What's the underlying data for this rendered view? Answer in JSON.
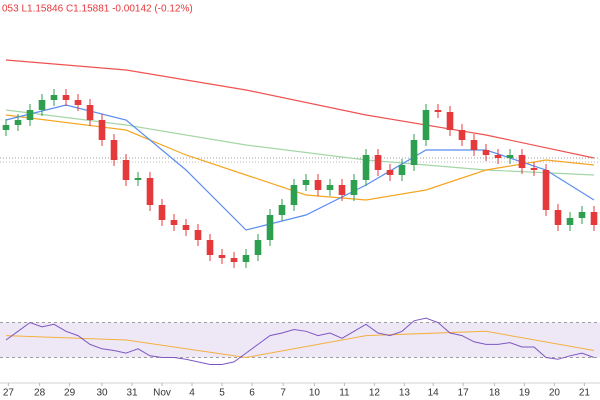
{
  "chart_data": {
    "type": "candlestick",
    "title": "053  L1.15846  C1.15881  -0.00142 (-0.12%)",
    "up_color": "#2e9e4f",
    "down_color": "#e5383b",
    "x": [
      0,
      1,
      2,
      3,
      4,
      5,
      6,
      7,
      8,
      9,
      10,
      11,
      12,
      13,
      14,
      15,
      16,
      17,
      18,
      19,
      20,
      21,
      22,
      23,
      24,
      25,
      26,
      27,
      28,
      29,
      30,
      31,
      32,
      33,
      34,
      35,
      36,
      37,
      38,
      39,
      40,
      41,
      42,
      43,
      44,
      45,
      46,
      47,
      48,
      49
    ],
    "open": [
      160,
      165,
      170,
      180,
      190,
      195,
      190,
      185,
      170,
      150,
      130,
      110,
      112,
      85,
      70,
      65,
      60,
      50,
      35,
      32,
      28,
      35,
      50,
      75,
      85,
      105,
      110,
      100,
      105,
      95,
      110,
      135,
      120,
      115,
      125,
      150,
      180,
      178,
      160,
      150,
      140,
      135,
      132,
      135,
      122,
      120,
      80,
      65,
      72,
      78
    ],
    "high": [
      171,
      176,
      186,
      196,
      201,
      201,
      196,
      191,
      176,
      156,
      136,
      118,
      118,
      91,
      76,
      71,
      66,
      56,
      41,
      38,
      41,
      56,
      81,
      91,
      111,
      116,
      116,
      111,
      111,
      116,
      141,
      141,
      126,
      131,
      156,
      186,
      186,
      184,
      166,
      156,
      146,
      141,
      141,
      141,
      128,
      126,
      86,
      78,
      84,
      84
    ],
    "low": [
      154,
      159,
      164,
      174,
      184,
      184,
      179,
      164,
      144,
      124,
      104,
      104,
      79,
      64,
      59,
      54,
      44,
      29,
      26,
      22,
      22,
      29,
      44,
      69,
      79,
      99,
      94,
      94,
      89,
      89,
      104,
      114,
      109,
      109,
      119,
      144,
      172,
      154,
      144,
      134,
      129,
      126,
      126,
      116,
      114,
      74,
      59,
      59,
      66,
      59
    ],
    "close": [
      165,
      170,
      180,
      190,
      195,
      190,
      185,
      170,
      150,
      130,
      110,
      112,
      85,
      70,
      65,
      60,
      50,
      35,
      32,
      28,
      35,
      50,
      75,
      85,
      105,
      110,
      100,
      105,
      95,
      110,
      135,
      120,
      115,
      125,
      150,
      180,
      178,
      160,
      150,
      140,
      135,
      132,
      135,
      122,
      120,
      80,
      65,
      72,
      78,
      65
    ],
    "xlim": [
      -0.5,
      49.5
    ],
    "xticks": [
      {
        "value": 0.2,
        "label": "27"
      },
      {
        "value": 2.8,
        "label": "28"
      },
      {
        "value": 5.3,
        "label": "29"
      },
      {
        "value": 8,
        "label": "30"
      },
      {
        "value": 10.5,
        "label": "31"
      },
      {
        "value": 13,
        "label": "Nov"
      },
      {
        "value": 15.5,
        "label": "4"
      },
      {
        "value": 18,
        "label": "5"
      },
      {
        "value": 20.5,
        "label": "6"
      },
      {
        "value": 23.1,
        "label": "7"
      },
      {
        "value": 25.7,
        "label": "10"
      },
      {
        "value": 28.2,
        "label": "11"
      },
      {
        "value": 30.7,
        "label": "12"
      },
      {
        "value": 33.2,
        "label": "13"
      },
      {
        "value": 35.6,
        "label": "14"
      },
      {
        "value": 38.1,
        "label": "17"
      },
      {
        "value": 40.7,
        "label": "18"
      },
      {
        "value": 43.2,
        "label": "19"
      },
      {
        "value": 45.7,
        "label": "20"
      },
      {
        "value": 48.2,
        "label": "21"
      }
    ],
    "ylim": [
      0,
      290
    ],
    "lines": [
      {
        "color": "#ef5350",
        "x": [
          0,
          10,
          20,
          30,
          40,
          49
        ],
        "values": [
          230,
          220,
          200,
          175,
          155,
          132
        ]
      },
      {
        "color": "#a5d6a7",
        "x": [
          0,
          10,
          20,
          30,
          40,
          49
        ],
        "values": [
          180,
          165,
          145,
          130,
          120,
          115
        ]
      },
      {
        "color": "#f5a623",
        "x": [
          0,
          10,
          15,
          20,
          25,
          30,
          35,
          40,
          45,
          49
        ],
        "values": [
          175,
          160,
          135,
          115,
          95,
          90,
          100,
          120,
          130,
          125
        ]
      },
      {
        "color": "#5b8def",
        "x": [
          0,
          5,
          10,
          15,
          20,
          25,
          30,
          35,
          40,
          45,
          49
        ],
        "values": [
          170,
          185,
          170,
          120,
          60,
          75,
          105,
          140,
          140,
          120,
          90
        ]
      }
    ],
    "rsi": {
      "ylim": [
        10,
        90
      ],
      "bands": [
        30,
        70
      ],
      "band_color": "#ede7f6",
      "line": {
        "color": "#7e57c2",
        "values": [
          50,
          60,
          70,
          65,
          68,
          60,
          55,
          45,
          40,
          38,
          35,
          40,
          32,
          30,
          30,
          28,
          25,
          22,
          22,
          25,
          35,
          45,
          55,
          58,
          62,
          60,
          55,
          58,
          52,
          60,
          68,
          58,
          55,
          60,
          72,
          75,
          70,
          58,
          55,
          48,
          45,
          45,
          47,
          42,
          42,
          30,
          28,
          32,
          35,
          30
        ]
      },
      "ma": {
        "color": "#f5b041",
        "x": [
          0,
          10,
          20,
          30,
          40,
          49
        ],
        "values": [
          55,
          50,
          30,
          55,
          60,
          38
        ]
      }
    }
  }
}
